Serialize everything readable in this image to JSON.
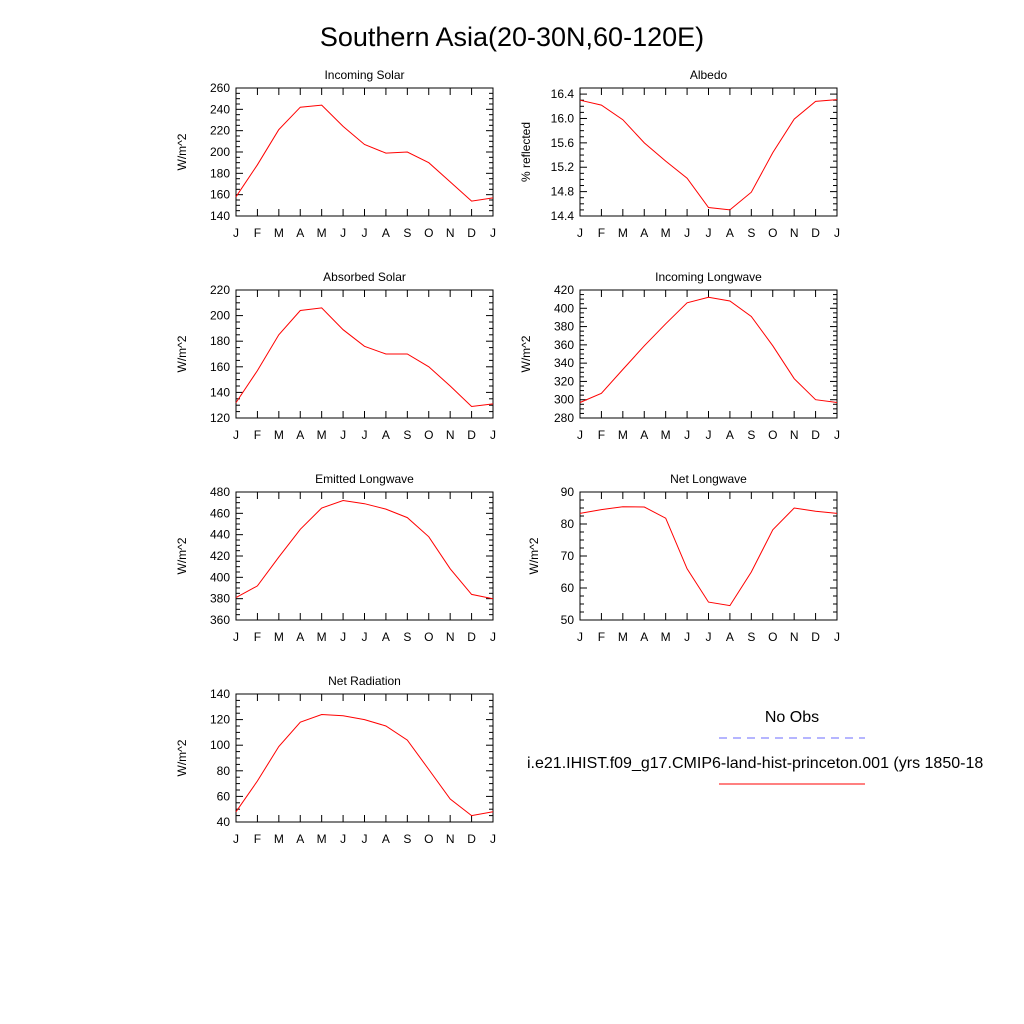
{
  "title": "Southern Asia(20-30N,60-120E)",
  "colors": {
    "model": "#ff0000",
    "obs": "#6b6bff"
  },
  "months": [
    "J",
    "F",
    "M",
    "A",
    "M",
    "J",
    "J",
    "A",
    "S",
    "O",
    "N",
    "D",
    "J"
  ],
  "legend": {
    "obs_label": "No Obs",
    "model_label": "i.e21.IHIST.f09_g17.CMIP6-land-hist-princeton.001 (yrs 1850-18"
  },
  "chart_data": [
    {
      "type": "line",
      "title": "Incoming Solar",
      "ylabel": "W/m^2",
      "ylim": [
        140,
        260
      ],
      "yticks": [
        140,
        160,
        180,
        200,
        220,
        240,
        260
      ],
      "ytick_labels": [
        "140",
        "160",
        "180",
        "200",
        "220",
        "240",
        "260"
      ],
      "categories": [
        "J",
        "F",
        "M",
        "A",
        "M",
        "J",
        "J",
        "A",
        "S",
        "O",
        "N",
        "D",
        "J"
      ],
      "values": [
        158,
        188,
        221,
        242,
        244,
        224,
        207,
        199,
        200,
        190,
        172,
        154,
        157
      ]
    },
    {
      "type": "line",
      "title": "Albedo",
      "ylabel": "% reflected",
      "ylim": [
        14.4,
        16.5
      ],
      "yticks": [
        14.4,
        14.8,
        15.2,
        15.6,
        16.0,
        16.4
      ],
      "ytick_labels": [
        "14.4",
        "14.8",
        "15.2",
        "15.6",
        "16.0",
        "16.4"
      ],
      "categories": [
        "J",
        "F",
        "M",
        "A",
        "M",
        "J",
        "J",
        "A",
        "S",
        "O",
        "N",
        "D",
        "J"
      ],
      "values": [
        16.3,
        16.22,
        15.98,
        15.6,
        15.3,
        15.02,
        14.54,
        14.5,
        14.79,
        15.44,
        15.99,
        16.28,
        16.31
      ]
    },
    {
      "type": "line",
      "title": "Absorbed Solar",
      "ylabel": "W/m^2",
      "ylim": [
        120,
        220
      ],
      "yticks": [
        120,
        140,
        160,
        180,
        200,
        220
      ],
      "ytick_labels": [
        "120",
        "140",
        "160",
        "180",
        "200",
        "220"
      ],
      "categories": [
        "J",
        "F",
        "M",
        "A",
        "M",
        "J",
        "J",
        "A",
        "S",
        "O",
        "N",
        "D",
        "J"
      ],
      "values": [
        132,
        157,
        185,
        204,
        206,
        189,
        176,
        170,
        170,
        160,
        145,
        129,
        131
      ]
    },
    {
      "type": "line",
      "title": "Incoming Longwave",
      "ylabel": "W/m^2",
      "ylim": [
        280,
        420
      ],
      "yticks": [
        280,
        300,
        320,
        340,
        360,
        380,
        400,
        420
      ],
      "ytick_labels": [
        "280",
        "300",
        "320",
        "340",
        "360",
        "380",
        "400",
        "420"
      ],
      "categories": [
        "J",
        "F",
        "M",
        "A",
        "M",
        "J",
        "J",
        "A",
        "S",
        "O",
        "N",
        "D",
        "J"
      ],
      "values": [
        297,
        307,
        333,
        359,
        383,
        406,
        412,
        408,
        391,
        359,
        323,
        300,
        297
      ]
    },
    {
      "type": "line",
      "title": "Emitted Longwave",
      "ylabel": "W/m^2",
      "ylim": [
        360,
        480
      ],
      "yticks": [
        360,
        380,
        400,
        420,
        440,
        460,
        480
      ],
      "ytick_labels": [
        "360",
        "380",
        "400",
        "420",
        "440",
        "460",
        "480"
      ],
      "categories": [
        "J",
        "F",
        "M",
        "A",
        "M",
        "J",
        "J",
        "A",
        "S",
        "O",
        "N",
        "D",
        "J"
      ],
      "values": [
        381,
        392,
        419,
        445,
        465,
        472,
        469,
        464,
        456,
        438,
        408,
        384,
        380
      ]
    },
    {
      "type": "line",
      "title": "Net Longwave",
      "ylabel": "W/m^2",
      "ylim": [
        50,
        90
      ],
      "yticks": [
        50,
        60,
        70,
        80,
        90
      ],
      "ytick_labels": [
        "50",
        "60",
        "70",
        "80",
        "90"
      ],
      "categories": [
        "J",
        "F",
        "M",
        "A",
        "M",
        "J",
        "J",
        "A",
        "S",
        "O",
        "N",
        "D",
        "J"
      ],
      "values": [
        83.3,
        84.5,
        85.4,
        85.3,
        81.8,
        66,
        55.6,
        54.5,
        65,
        78.2,
        85,
        84,
        83.3
      ]
    },
    {
      "type": "line",
      "title": "Net Radiation",
      "ylabel": "W/m^2",
      "ylim": [
        40,
        140
      ],
      "yticks": [
        40,
        60,
        80,
        100,
        120,
        140
      ],
      "ytick_labels": [
        "40",
        "60",
        "80",
        "100",
        "120",
        "140"
      ],
      "categories": [
        "J",
        "F",
        "M",
        "A",
        "M",
        "J",
        "J",
        "A",
        "S",
        "O",
        "N",
        "D",
        "J"
      ],
      "values": [
        48,
        72,
        99,
        118,
        124,
        123,
        120,
        115,
        104,
        81,
        58,
        45,
        48
      ]
    }
  ]
}
